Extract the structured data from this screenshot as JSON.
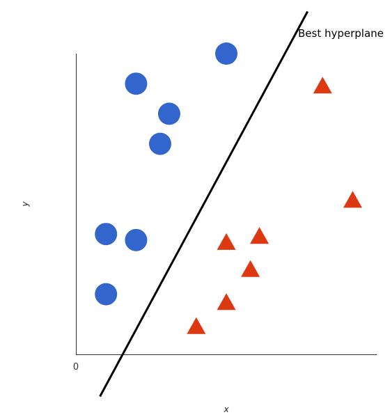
{
  "chart_data": {
    "type": "scatter",
    "title": "",
    "xlabel": "x",
    "ylabel": "y",
    "origin_label": "0",
    "xlim": [
      0,
      10
    ],
    "ylim": [
      0,
      10
    ],
    "grid": false,
    "legend": "none",
    "series": [
      {
        "marker": "circle",
        "color": "#3366cc",
        "points": [
          [
            5,
            10.0
          ],
          [
            2,
            9.0
          ],
          [
            3.1,
            8.0
          ],
          [
            2.8,
            7.0
          ],
          [
            1,
            4.0
          ],
          [
            2,
            3.8
          ],
          [
            1,
            2.0
          ]
        ]
      },
      {
        "marker": "triangle",
        "color": "#dc3912",
        "points": [
          [
            8.2,
            9.0
          ],
          [
            9.2,
            5.2
          ],
          [
            6.1,
            4.0
          ],
          [
            5,
            3.8
          ],
          [
            5.8,
            2.9
          ],
          [
            5,
            1.8
          ],
          [
            4,
            1.0
          ]
        ]
      }
    ],
    "hyperplane": {
      "label": "Best hyperplane",
      "color": "#000000",
      "from": [
        0.8,
        -1.4
      ],
      "to": [
        7.7,
        11.4
      ]
    }
  }
}
